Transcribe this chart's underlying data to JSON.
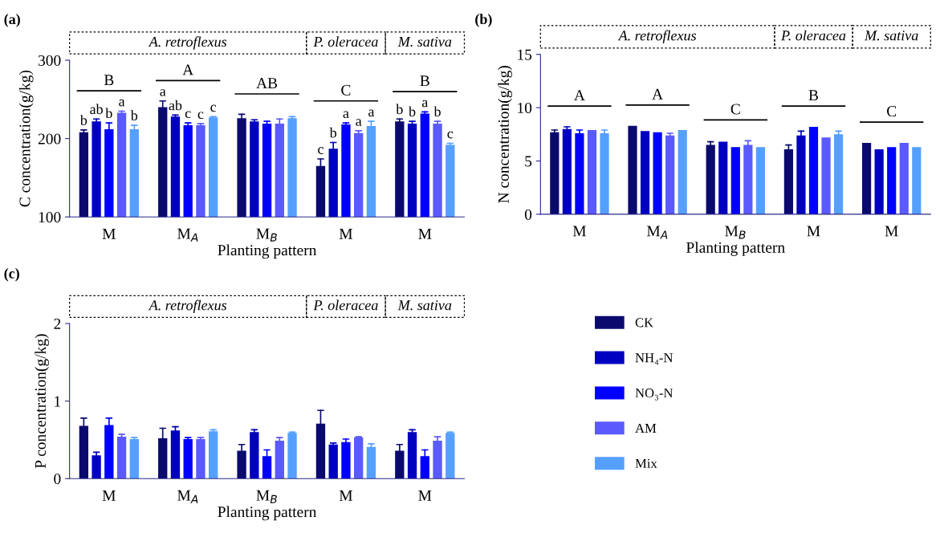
{
  "chart_data": [
    {
      "type": "bar",
      "title": "(a)",
      "xlabel": "Planting pattern",
      "ylabel": "C concentration(g/kg)",
      "categories": [
        "M",
        "M$_{A}$",
        "M$_{B}$",
        "M",
        "M"
      ],
      "ylim": [
        100,
        300
      ],
      "yticks": [
        100,
        200,
        300
      ],
      "grid": false,
      "legend": false,
      "annotations": [
        "A. retroflexus",
        "P. oleracea",
        "M. sativa",
        "B",
        "A",
        "AB",
        "C",
        "B"
      ],
      "series": [
        {
          "color": "#0a0a6e",
          "values": [
            208,
            240,
            226,
            165,
            222
          ],
          "errors": [
            3,
            8,
            5,
            9,
            3
          ],
          "value_labels": [
            "b",
            "a",
            null,
            "c",
            "b"
          ]
        },
        {
          "color": "#0000c0",
          "values": [
            222,
            228,
            222,
            187,
            219
          ],
          "errors": [
            3,
            2,
            2,
            8,
            3
          ],
          "value_labels": [
            "ab",
            "ab",
            null,
            "b",
            "b"
          ]
        },
        {
          "color": "#0000ff",
          "values": [
            212,
            217,
            219,
            218,
            232
          ],
          "errors": [
            8,
            3,
            3,
            2,
            2
          ],
          "value_labels": [
            "b",
            "c",
            null,
            "a",
            "a"
          ]
        },
        {
          "color": "#5a5aff",
          "values": [
            233,
            217,
            219,
            207,
            219
          ],
          "errors": [
            2,
            2,
            6,
            3,
            3
          ],
          "value_labels": [
            "a",
            "c",
            null,
            "a",
            "b"
          ]
        },
        {
          "color": "#55a0ff",
          "values": [
            212,
            227,
            226,
            216,
            192
          ],
          "errors": [
            5,
            1,
            2,
            6,
            2
          ],
          "value_labels": [
            "b",
            "c",
            null,
            "a",
            "c"
          ]
        }
      ]
    },
    {
      "type": "bar",
      "title": "(b)",
      "xlabel": "Planting pattern",
      "ylabel": "N concentration(g/kg)",
      "categories": [
        "M",
        "M$_{A}$",
        "M$_{B}$",
        "M",
        "M"
      ],
      "ylim": [
        0,
        15
      ],
      "yticks": [
        0,
        5,
        10,
        15
      ],
      "grid": false,
      "legend": false,
      "annotations": [
        "A. retroflexus",
        "P. oleracea",
        "M. sativa",
        "A",
        "A",
        "C",
        "B",
        "C"
      ],
      "series": [
        {
          "color": "#0a0a6e",
          "values": [
            7.7,
            8.3,
            6.5,
            6.1,
            6.7
          ],
          "errors": [
            0.2,
            null,
            0.3,
            0.4,
            null
          ]
        },
        {
          "color": "#0000c0",
          "values": [
            8.0,
            7.8,
            6.8,
            7.4,
            6.1
          ],
          "errors": [
            0.2,
            null,
            null,
            0.4,
            null
          ]
        },
        {
          "color": "#0000ff",
          "values": [
            7.6,
            7.7,
            6.3,
            8.2,
            6.3
          ],
          "errors": [
            0.3,
            null,
            null,
            null,
            null
          ]
        },
        {
          "color": "#5a5aff",
          "values": [
            7.9,
            7.4,
            6.5,
            7.2,
            6.7
          ],
          "errors": [
            null,
            0.2,
            0.4,
            null,
            null
          ]
        },
        {
          "color": "#55a0ff",
          "values": [
            7.6,
            7.9,
            6.3,
            7.5,
            6.3
          ],
          "errors": [
            0.3,
            null,
            null,
            0.3,
            null
          ]
        }
      ]
    },
    {
      "type": "bar",
      "title": "(c)",
      "xlabel": "Planting pattern",
      "ylabel": "P concentration(g/kg)",
      "categories": [
        "M",
        "M$_{A}$",
        "M$_{B}$",
        "M",
        "M"
      ],
      "ylim": [
        0,
        2
      ],
      "yticks": [
        0,
        1,
        2
      ],
      "grid": false,
      "legend": "right",
      "annotations": [
        "A. retroflexus",
        "P. oleracea",
        "M. sativa"
      ],
      "series": [
        {
          "name": "CK",
          "color": "#0a0a6e",
          "values": [
            0.68,
            0.52,
            0.36,
            0.71,
            0.36
          ],
          "errors": [
            0.1,
            0.13,
            0.08,
            0.17,
            0.08
          ]
        },
        {
          "name": "NH₄-N",
          "color": "#0000c0",
          "values": [
            0.3,
            0.62,
            0.6,
            0.44,
            0.6
          ],
          "errors": [
            0.04,
            0.05,
            0.03,
            0.02,
            0.03
          ]
        },
        {
          "name": "NO₃-N",
          "color": "#0000ff",
          "values": [
            0.69,
            0.51,
            0.29,
            0.47,
            0.29
          ],
          "errors": [
            0.09,
            0.02,
            0.08,
            0.04,
            0.08
          ]
        },
        {
          "name": "AM",
          "color": "#5a5aff",
          "values": [
            0.54,
            0.51,
            0.49,
            0.53,
            0.49
          ],
          "errors": [
            0.03,
            0.02,
            0.04,
            0.01,
            0.05
          ]
        },
        {
          "name": "Mix",
          "color": "#55a0ff",
          "values": [
            0.51,
            0.61,
            0.59,
            0.41,
            0.59
          ],
          "errors": [
            0.02,
            0.02,
            0.01,
            0.04,
            0.01
          ]
        }
      ]
    }
  ]
}
